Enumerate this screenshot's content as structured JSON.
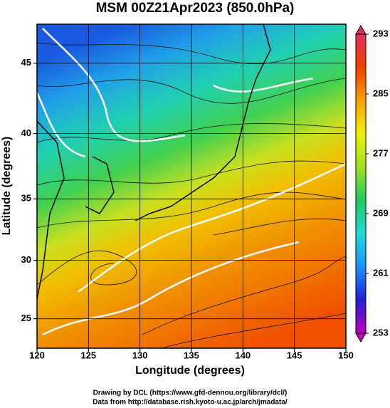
{
  "chart_data": {
    "type": "map",
    "title": "MSM 00Z21Apr2023 (850.0hPa)",
    "x_label": "Longitude (degrees)",
    "y_label": "Latitude  (degrees)",
    "xlim": [
      120,
      150
    ],
    "xticks": [
      120,
      125,
      130,
      135,
      140,
      145,
      150
    ],
    "ylim": [
      22.4,
      47.6
    ],
    "yticks": [
      25,
      30,
      35,
      40,
      45
    ],
    "y_scale": "mercator",
    "grid": true,
    "colorbar": {
      "lim": [
        253,
        293
      ],
      "ticks": [
        253,
        261,
        269,
        277,
        285,
        293
      ],
      "colors": [
        "#c000c0",
        "#2020d0",
        "#1e90ff",
        "#20d8d8",
        "#20c860",
        "#a0e020",
        "#f0f000",
        "#f8a000",
        "#f04000",
        "#e03060"
      ]
    },
    "credits": [
      "Drawing by DCL (https://www.gfd-dennou.org/library/dcl/)",
      "Data from http://database.rish.kyoto-u.ac.jp/arch/jmadata/"
    ]
  }
}
